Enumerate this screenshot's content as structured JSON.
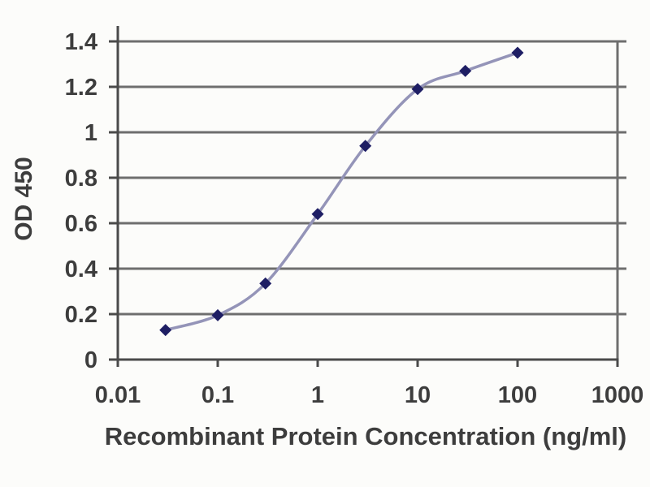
{
  "chart_data": {
    "type": "line",
    "title": "",
    "xlabel": "Recombinant Protein Concentration (ng/ml)",
    "ylabel": "OD 450",
    "x_scale": "log10",
    "xlim": [
      0.01,
      1000
    ],
    "ylim": [
      0,
      1.4
    ],
    "x_ticks": [
      0.01,
      0.1,
      1,
      10,
      100,
      1000
    ],
    "x_tick_labels": [
      "0.01",
      "0.1",
      "1",
      "10",
      "100",
      "1000"
    ],
    "y_ticks": [
      0,
      0.2,
      0.4,
      0.6,
      0.8,
      1,
      1.2,
      1.4
    ],
    "y_tick_labels": [
      "0",
      "0.2",
      "0.4",
      "0.6",
      "0.8",
      "1",
      "1.2",
      "1.4"
    ],
    "grid": "horizontal",
    "legend_position": "none",
    "series": [
      {
        "name": "OD 450",
        "marker": "diamond",
        "x": [
          0.03,
          0.1,
          0.3,
          1,
          3,
          10,
          30,
          100
        ],
        "values": [
          0.13,
          0.195,
          0.335,
          0.64,
          0.94,
          1.19,
          1.27,
          1.35
        ]
      }
    ],
    "colors": {
      "marker": "#1e1e64",
      "line": "#9494b8",
      "grid": "#6e6e6e",
      "axis": "#4a4a4a",
      "text": "#3d3d3d",
      "background": "#fcfcfa"
    }
  }
}
